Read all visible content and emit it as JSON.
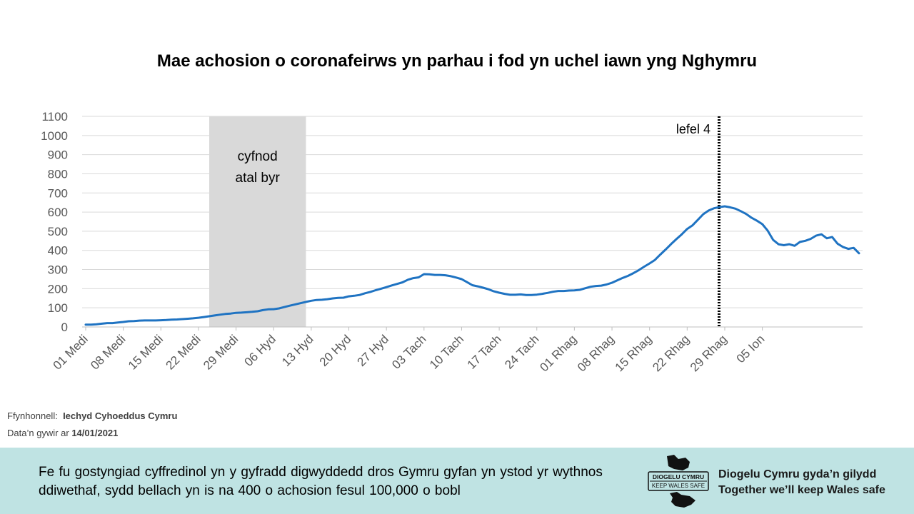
{
  "chart_data": {
    "type": "line",
    "title": "Mae achosion o coronafeirws yn parhau i fod yn uchel iawn yng Nghymru",
    "xlabel": "",
    "ylabel": "",
    "ylim": [
      0,
      1100
    ],
    "yticks": [
      0,
      100,
      200,
      300,
      400,
      500,
      600,
      700,
      800,
      900,
      1000,
      1100
    ],
    "xticks": [
      "01 Medi",
      "08 Medi",
      "15 Medi",
      "22 Medi",
      "29 Medi",
      "06 Hyd",
      "13 Hyd",
      "20 Hyd",
      "27 Hyd",
      "03 Tach",
      "10 Tach",
      "17 Tach",
      "24 Tach",
      "01 Rhag",
      "08 Rhag",
      "15 Rhag",
      "22 Rhag",
      "29 Rhag",
      "05 Ion"
    ],
    "grid": true,
    "series": [
      {
        "color": "#1f73c2",
        "values": [
          12,
          12,
          14,
          17,
          20,
          20,
          23,
          26,
          30,
          31,
          33,
          34,
          34,
          34,
          35,
          36,
          38,
          39,
          41,
          43,
          45,
          48,
          52,
          56,
          60,
          64,
          68,
          70,
          74,
          75,
          77,
          79,
          82,
          88,
          92,
          93,
          97,
          104,
          111,
          118,
          124,
          131,
          137,
          141,
          142,
          145,
          149,
          152,
          153,
          160,
          163,
          167,
          176,
          183,
          192,
          200,
          208,
          217,
          225,
          233,
          247,
          255,
          259,
          276,
          275,
          272,
          272,
          270,
          265,
          258,
          250,
          234,
          218,
          212,
          205,
          197,
          186,
          179,
          173,
          168,
          168,
          170,
          167,
          167,
          169,
          173,
          178,
          184,
          188,
          188,
          190,
          191,
          194,
          202,
          210,
          214,
          216,
          222,
          231,
          244,
          256,
          267,
          281,
          297,
          315,
          332,
          350,
          378,
          405,
          433,
          459,
          484,
          512,
          531,
          560,
          589,
          608,
          620,
          626,
          630,
          625,
          618,
          605,
          590,
          570,
          555,
          537,
          503,
          455,
          432,
          427,
          432,
          424,
          444,
          450,
          460,
          477,
          484,
          463,
          470,
          435,
          418,
          408,
          413,
          385
        ]
      }
    ],
    "annotations": [
      {
        "type": "shaded_region",
        "x_start": 23,
        "x_end": 41,
        "label_lines": [
          "cyfnod",
          "atal byr"
        ],
        "color": "#d9d9d9"
      },
      {
        "type": "vline",
        "x": 119,
        "label": "lefel 4",
        "style": "dashed"
      }
    ]
  },
  "source": {
    "label": "Ffynhonnell:",
    "value": "Iechyd Cyhoeddus Cymru",
    "date_label": "Data’n gywir ar",
    "date_value": "14/01/2021"
  },
  "footer": {
    "text": "Fe fu gostyngiad cyffredinol yn y gyfradd digwyddedd dros Gymru gyfan yn ystod yr wythnos ddiwethaf, sydd bellach yn is na 400 o achosion fesul 100,000 o bobl",
    "logo_line1": "DIOGELU CYMRU",
    "logo_line2": "KEEP WALES SAFE",
    "tagline_cy": "Diogelu Cymru gyda’n gilydd",
    "tagline_en": "Together we’ll keep Wales safe",
    "background": "#bfe3e3"
  }
}
